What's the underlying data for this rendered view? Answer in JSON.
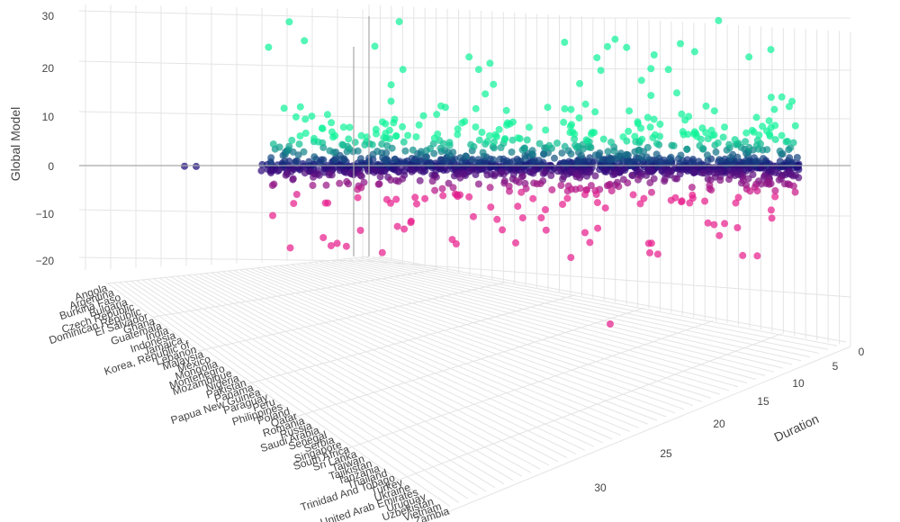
{
  "chart_data": {
    "type": "scatter",
    "projection": "3d",
    "title": "",
    "zlabel": "Global Model",
    "ylabel": "Duration",
    "xlabel": "",
    "zlim": [
      -24,
      32
    ],
    "z_ticks": [
      "30",
      "20",
      "10",
      "0",
      "−10",
      "−20"
    ],
    "duration_ticks": [
      "0",
      "5",
      "10",
      "15",
      "20",
      "25",
      "30"
    ],
    "country_ticks": [
      "Angola",
      "Argentina",
      "Burkina Faso",
      "Bulgaria",
      "Czech Republic",
      "Dominican Republic",
      "El Salvador",
      "Ghana",
      "Guatemala",
      "India",
      "Indonesia",
      "Jamaica",
      "Korea, Republic of",
      "Lebanon",
      "Malaysia",
      "Mexico",
      "Mongolia",
      "Montenegro",
      "Mozambique",
      "Nigeria",
      "Pakistan",
      "Panama",
      "Papua New Guinea",
      "Paraguay",
      "Peru",
      "Philippines",
      "Poland",
      "Qatar",
      "Romania",
      "Russia",
      "Saudi Arabia",
      "Senegal",
      "Serbia",
      "Singapore",
      "South Africa",
      "Sri Lanka",
      "Taiwan",
      "Tajikistan",
      "Tanzania",
      "Thailand",
      "Trinidad And Tobago",
      "Turkey",
      "Ukraine",
      "United Arab Emirates",
      "Uruguay",
      "Uzbekistan",
      "Vietnam",
      "Zambia"
    ],
    "colorscale": [
      "#e8208e",
      "#1a0a7a",
      "#10f29a"
    ],
    "point_count": 1400
  }
}
